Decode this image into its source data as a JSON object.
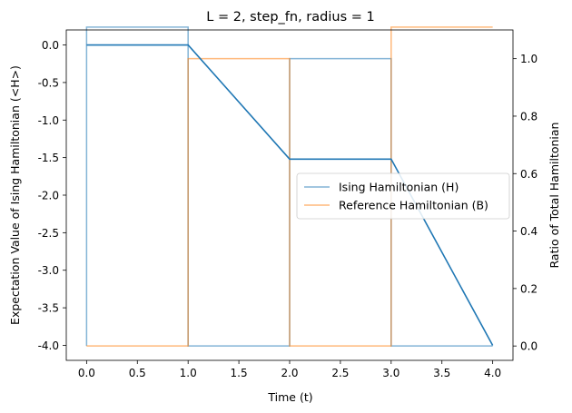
{
  "chart_data": {
    "type": "line",
    "title": "L = 2, step_fn, radius = 1",
    "xlabel": "Time (t)",
    "ylabel_left": "Expectation Value of Ising Hamiltonian (<H>)",
    "ylabel_right": "Ratio of Total Hamiltonian",
    "xlim": [
      -0.2,
      4.2
    ],
    "ylim_left": [
      -4.2,
      0.2
    ],
    "ylim_right": [
      -0.05,
      1.1
    ],
    "x_ticks": [
      "0.0",
      "0.5",
      "1.0",
      "1.5",
      "2.0",
      "2.5",
      "3.0",
      "3.5",
      "4.0"
    ],
    "y_left_ticks": [
      "0.0",
      "-0.5",
      "-1.0",
      "-1.5",
      "-2.0",
      "-2.5",
      "-3.0",
      "-3.5",
      "-4.0"
    ],
    "y_right_ticks": [
      "0.0",
      "0.2",
      "0.4",
      "0.6",
      "0.8",
      "1.0"
    ],
    "expectation_series": {
      "axis": "left",
      "color": "#1f77b4",
      "x": [
        0,
        1,
        2,
        3,
        4
      ],
      "y": [
        0,
        0,
        -1.52,
        -1.52,
        -4.0
      ]
    },
    "ratio_series": [
      {
        "name": "Ising Hamiltonian (H)",
        "axis": "right",
        "color": "#1f77b4",
        "x": [
          0,
          0,
          1,
          1,
          2,
          2,
          3,
          3,
          4
        ],
        "y": [
          0,
          1.11,
          1.11,
          0,
          0,
          1.0,
          1.0,
          0,
          0
        ]
      },
      {
        "name": "Reference Hamiltonian (B)",
        "axis": "right",
        "color": "#ff7f0e",
        "x": [
          0,
          1,
          1,
          2,
          2,
          3,
          3,
          4
        ],
        "y": [
          0,
          0,
          1.0,
          1.0,
          0,
          0,
          1.11,
          1.11
        ]
      }
    ],
    "legend_position": "center-right",
    "grid": false
  }
}
